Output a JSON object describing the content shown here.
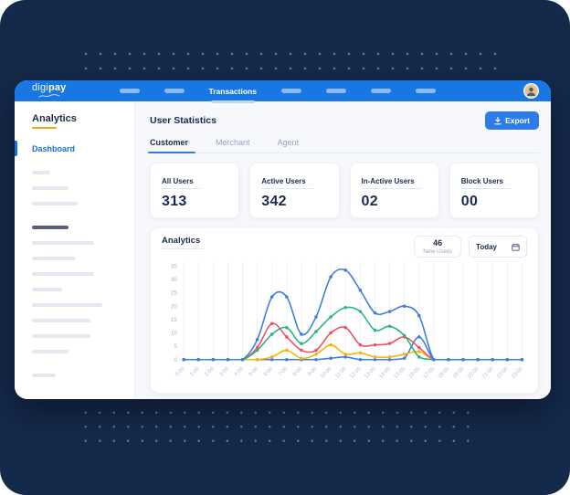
{
  "window": {
    "logo": {
      "text_light": "digi",
      "text_bold": "pay"
    },
    "navbar": {
      "active_item": "Transactions"
    }
  },
  "sidebar": {
    "title": "Analytics",
    "active_item": "Dashboard"
  },
  "main": {
    "title": "User Statistics",
    "export_label": "Export",
    "tabs": [
      {
        "label": "Customer",
        "active": true
      },
      {
        "label": "Merchant",
        "active": false
      },
      {
        "label": "Agent",
        "active": false
      }
    ],
    "stats": [
      {
        "label": "All Users",
        "value": "313"
      },
      {
        "label": "Active Users",
        "value": "342"
      },
      {
        "label": "In-Active Users",
        "value": "02"
      },
      {
        "label": "Block Users",
        "value": "00"
      }
    ],
    "analytics": {
      "title": "Analytics",
      "badge_value": "46",
      "badge_label": "New Users",
      "period": "Today"
    }
  },
  "colors": {
    "background_navy": "#15294b",
    "header_blue": "#1877e2",
    "accent_blue": "#2f7ce8",
    "text_navy": "#1b2a4e",
    "muted_gray": "#9aa5b8",
    "sidebar_accent_yellow": "#f6a60d"
  },
  "chart_data": {
    "type": "line",
    "title": "Analytics",
    "xlabel": "",
    "ylabel": "",
    "ylim": [
      0,
      35
    ],
    "yticks": [
      0,
      5,
      10,
      15,
      20,
      25,
      30,
      35
    ],
    "grid": "vertical",
    "legend": "none",
    "categories": [
      "0:00",
      "1:00",
      "2:00",
      "3:00",
      "4:00",
      "5:00",
      "6:00",
      "7:00",
      "8:00",
      "9:00",
      "10:00",
      "11:00",
      "12:00",
      "13:00",
      "14:00",
      "15:00",
      "16:00",
      "17:00",
      "18:00",
      "19:00",
      "20:00",
      "21:00",
      "22:00",
      "23:00"
    ],
    "series": [
      {
        "name": "flat-blue",
        "color": "#3f7de0",
        "values": [
          0,
          0,
          0,
          0,
          0,
          0,
          0,
          0,
          0,
          0,
          0.5,
          1,
          0,
          0,
          0,
          0.5,
          8.5,
          0,
          0,
          0,
          0,
          0,
          0,
          0
        ]
      },
      {
        "name": "yellow",
        "color": "#f6b40e",
        "values": [
          0,
          0,
          0,
          0,
          0,
          0,
          1,
          3.5,
          0.5,
          2,
          5.5,
          2,
          2.5,
          1,
          1,
          2,
          3,
          0,
          0,
          0,
          0,
          0,
          0,
          0
        ]
      },
      {
        "name": "red",
        "color": "#ef5166",
        "values": [
          0,
          0,
          0,
          0,
          0,
          4.5,
          13.5,
          8.5,
          3.5,
          3.5,
          10,
          12,
          5.5,
          5.5,
          6,
          8.5,
          4.5,
          0,
          0,
          0,
          0,
          0,
          0,
          0
        ]
      },
      {
        "name": "green",
        "color": "#2eb57e",
        "values": [
          0,
          0,
          0,
          0,
          0,
          3.5,
          9.5,
          12,
          6,
          10.5,
          16,
          19.5,
          18,
          11,
          12.5,
          9,
          1,
          0,
          0,
          0,
          0,
          0,
          0,
          0
        ]
      },
      {
        "name": "blue",
        "color": "#3f7de0",
        "values": [
          0,
          0,
          0,
          0,
          0,
          7.5,
          23.5,
          23.5,
          9.5,
          16,
          31,
          33.5,
          26,
          17.5,
          18,
          20,
          16.5,
          0,
          0,
          0,
          0,
          0,
          0,
          0
        ]
      }
    ]
  }
}
